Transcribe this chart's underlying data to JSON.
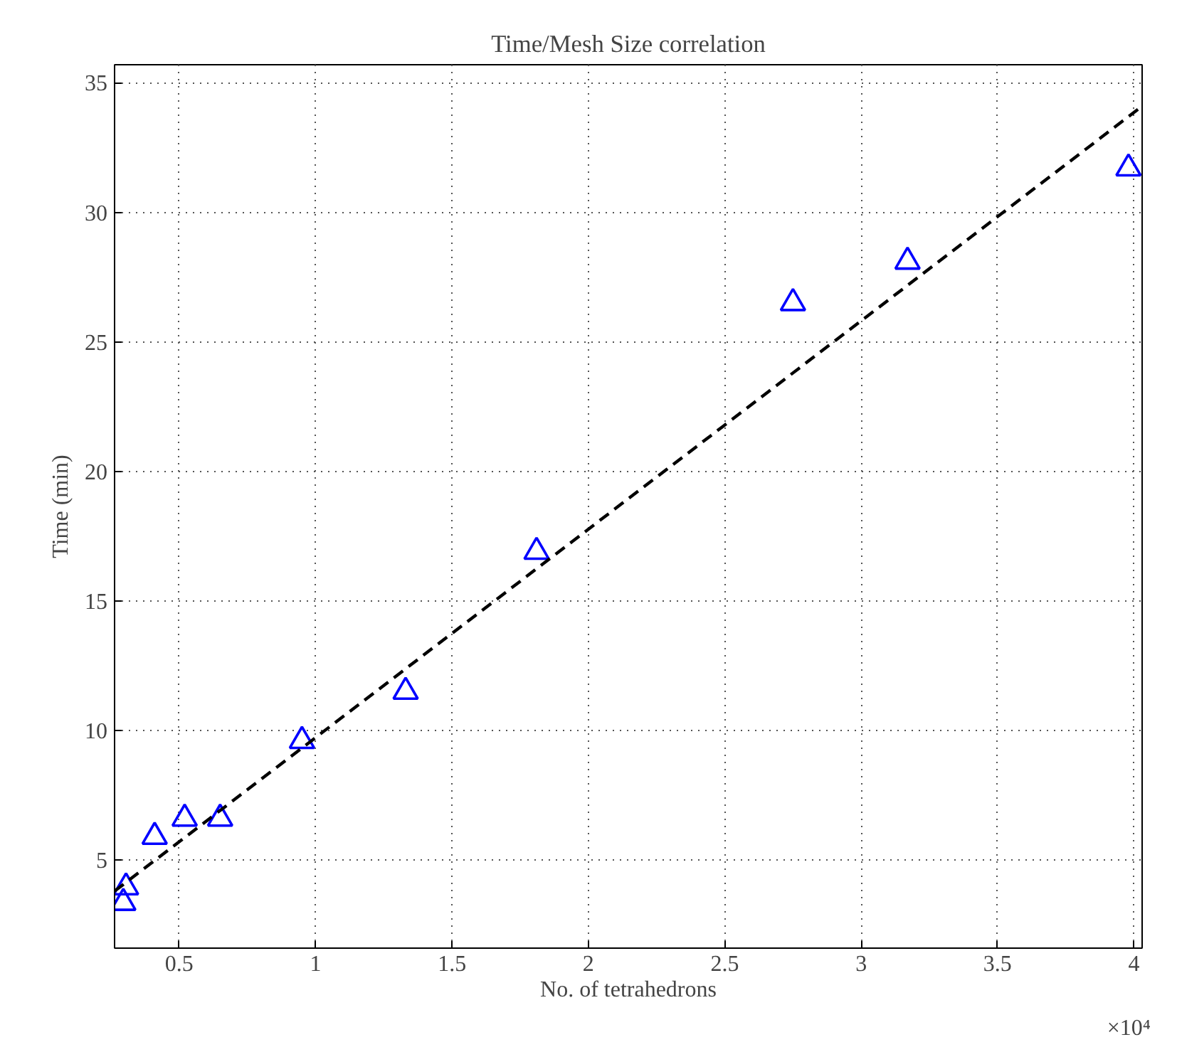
{
  "chart_data": {
    "type": "scatter",
    "title": "Time/Mesh Size correlation",
    "xlabel": "No. of tetrahedrons",
    "ylabel": "Time (min)",
    "annotations": [
      "×10⁴"
    ],
    "xlim": [
      0.263,
      4.03
    ],
    "ylim": [
      1.6,
      35.7
    ],
    "xticks": [
      0.5,
      1,
      1.5,
      2,
      2.5,
      3,
      3.5,
      4
    ],
    "yticks": [
      5,
      10,
      15,
      20,
      25,
      30,
      35
    ],
    "grid": true,
    "series": [
      {
        "color": "#0000ff",
        "marker": "triangle",
        "x": [
          0.295,
          0.305,
          0.41,
          0.52,
          0.65,
          0.95,
          1.33,
          1.81,
          2.75,
          3.17,
          3.98
        ],
        "values": [
          3.35,
          3.95,
          5.9,
          6.6,
          6.6,
          9.6,
          11.5,
          16.9,
          26.5,
          28.1,
          31.7
        ]
      },
      {
        "type": "line",
        "color": "#000000",
        "line_style": "dashed",
        "marker": "none",
        "x": [
          0.263,
          4.03
        ],
        "values": [
          3.8,
          34.1
        ]
      }
    ]
  }
}
